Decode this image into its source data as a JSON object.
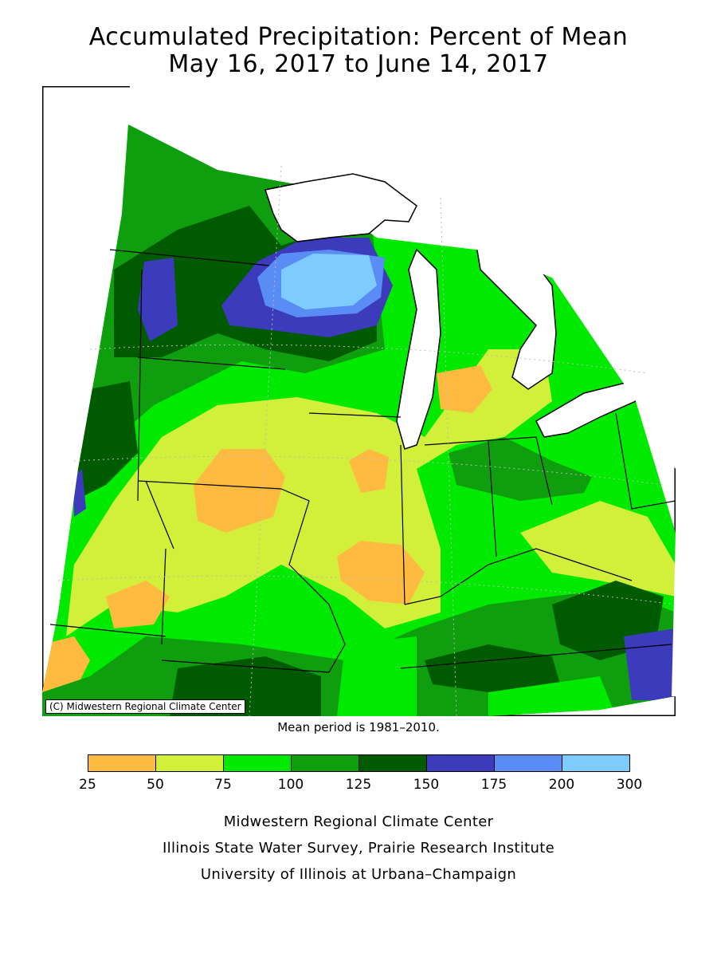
{
  "title_line1": "Accumulated Precipitation: Percent of Mean",
  "title_line2": "May 16, 2017 to June 14, 2017",
  "copyright": "(C) Midwestern Regional Climate Center",
  "mean_note": "Mean period is 1981–2010.",
  "legend": {
    "colors": [
      "#ffbb3f",
      "#d2ef3a",
      "#00ea00",
      "#0e9e0e",
      "#005b00",
      "#3b3bbb",
      "#5a8cf5",
      "#7dcbff"
    ],
    "ticks": [
      "25",
      "50",
      "75",
      "100",
      "125",
      "150",
      "175",
      "200",
      "300"
    ]
  },
  "colors": {
    "lake": "#ffffff",
    "border": "#000000",
    "grid": "#bbbbbb"
  },
  "credits": {
    "line1": "Midwestern Regional Climate Center",
    "line2": "Illinois State Water Survey, Prairie Research Institute",
    "line3": "University of Illinois at Urbana–Champaign"
  }
}
